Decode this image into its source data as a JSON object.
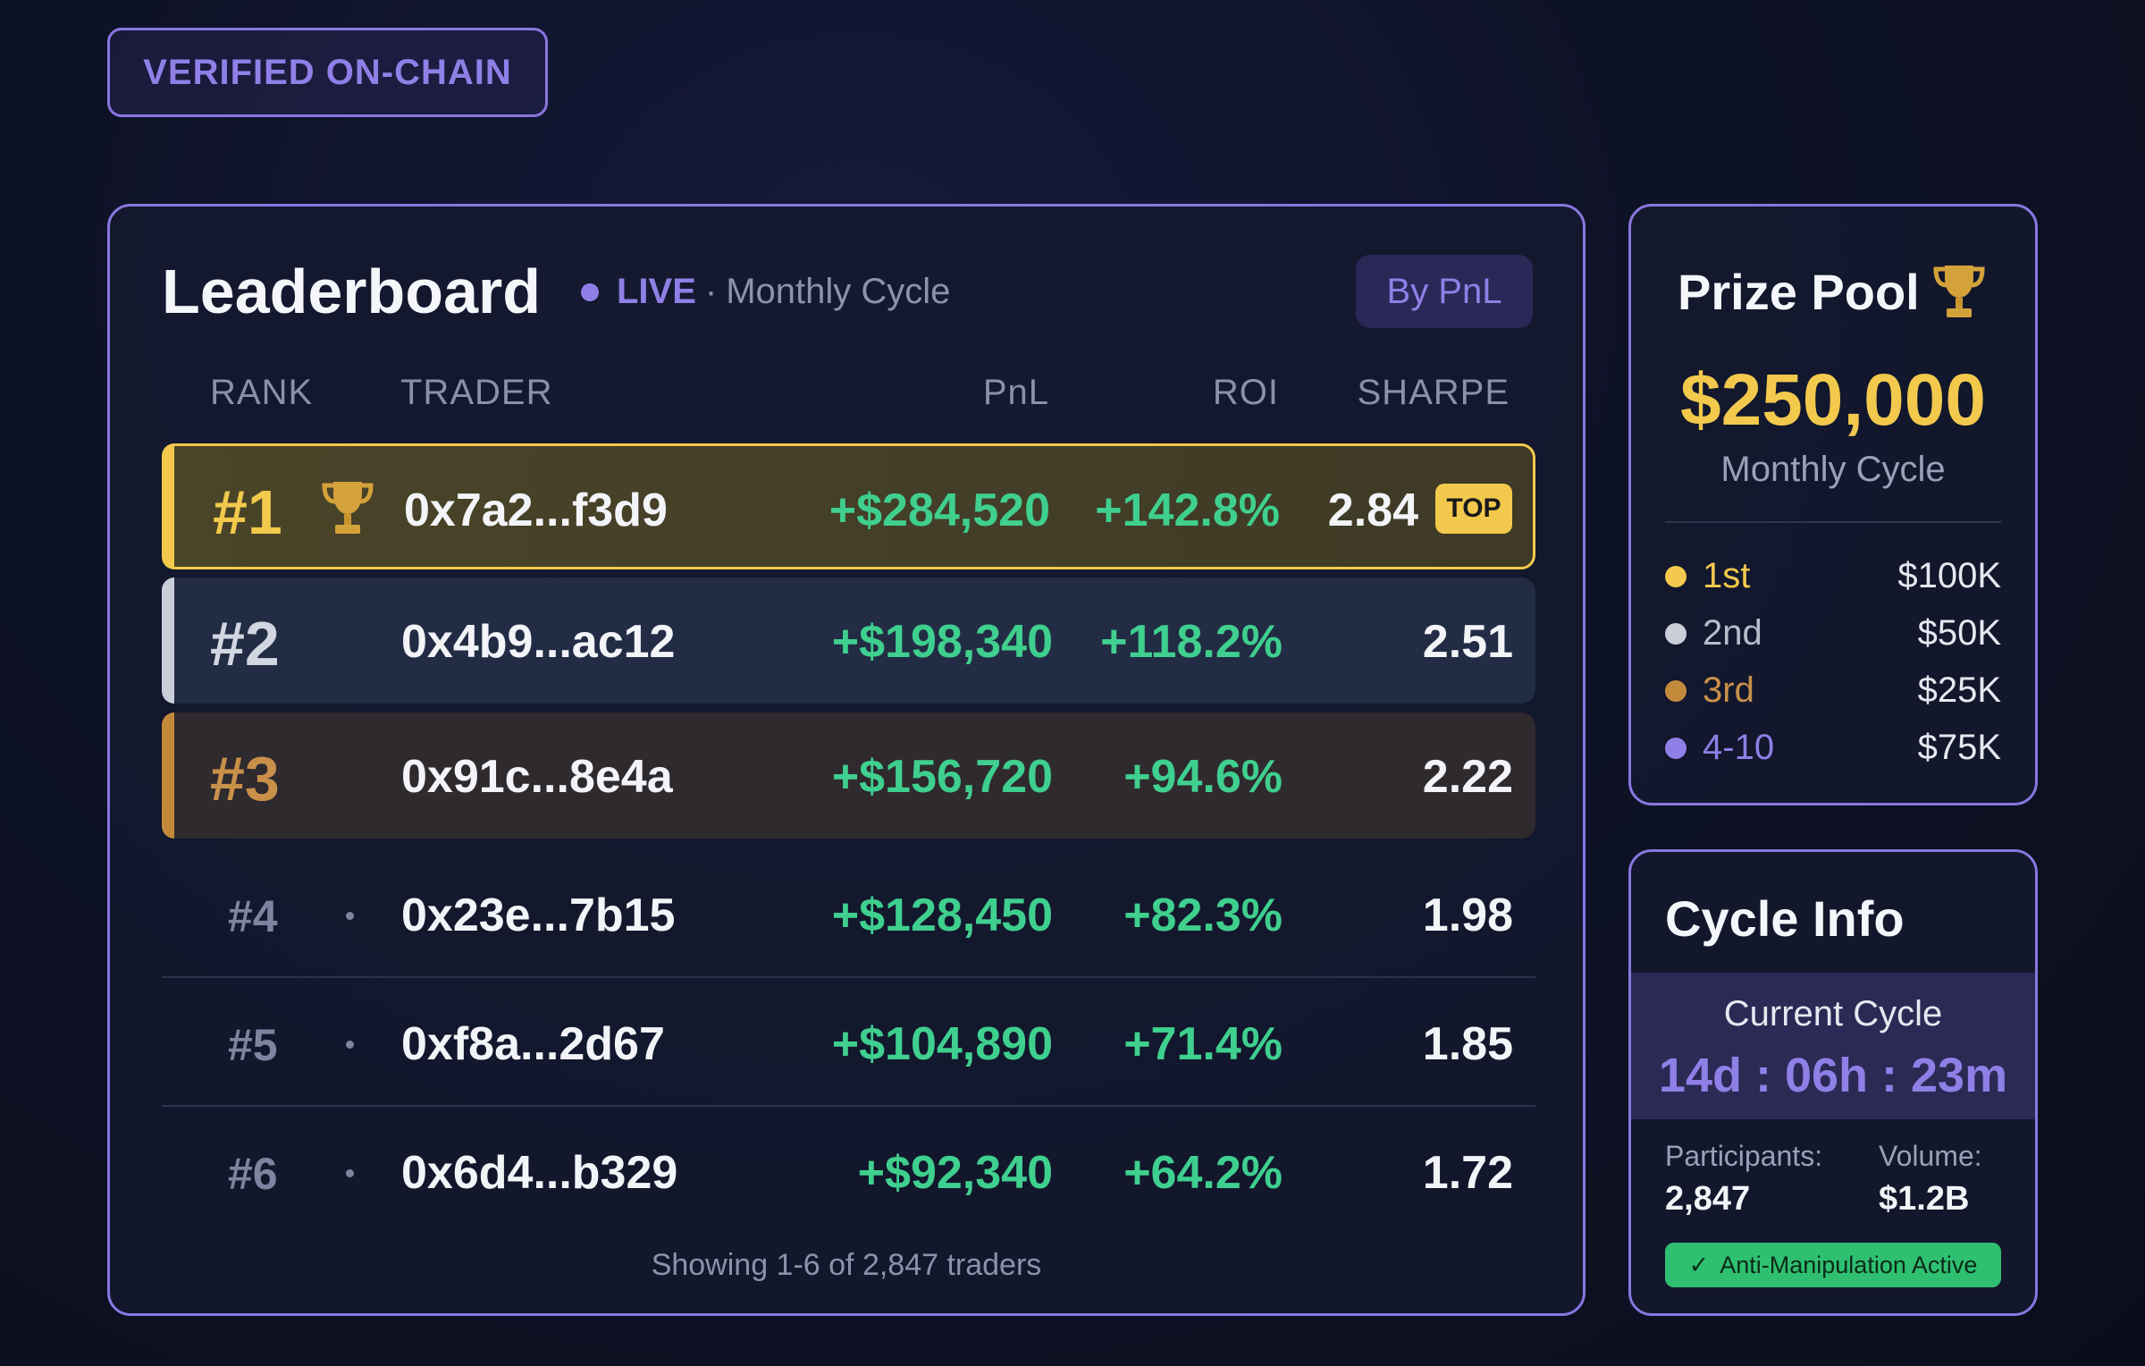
{
  "badge": "VERIFIED ON-CHAIN",
  "leaderboard": {
    "title": "Leaderboard",
    "live": "LIVE",
    "separator": "·",
    "cycle": "Monthly Cycle",
    "sort_label": "By PnL",
    "columns": {
      "rank": "RANK",
      "trader": "TRADER",
      "pnl": "PnL",
      "roi": "ROI",
      "sharpe": "SHARPE"
    },
    "rows": [
      {
        "rank": "#1",
        "trader": "0x7a2...f3d9",
        "pnl": "+$284,520",
        "roi": "+142.8%",
        "sharpe": "2.84",
        "badge": "TOP"
      },
      {
        "rank": "#2",
        "trader": "0x4b9...ac12",
        "pnl": "+$198,340",
        "roi": "+118.2%",
        "sharpe": "2.51"
      },
      {
        "rank": "#3",
        "trader": "0x91c...8e4a",
        "pnl": "+$156,720",
        "roi": "+94.6%",
        "sharpe": "2.22"
      },
      {
        "rank": "#4",
        "trader": "0x23e...7b15",
        "pnl": "+$128,450",
        "roi": "+82.3%",
        "sharpe": "1.98"
      },
      {
        "rank": "#5",
        "trader": "0xf8a...2d67",
        "pnl": "+$104,890",
        "roi": "+71.4%",
        "sharpe": "1.85"
      },
      {
        "rank": "#6",
        "trader": "0x6d4...b329",
        "pnl": "+$92,340",
        "roi": "+64.2%",
        "sharpe": "1.72"
      }
    ],
    "footer": "Showing 1-6 of 2,847 traders"
  },
  "prize_pool": {
    "title": "Prize Pool",
    "icon": "trophy-icon",
    "amount": "$250,000",
    "cycle": "Monthly Cycle",
    "tiers": [
      {
        "label": "1st",
        "value": "$100K",
        "color": "#f2c94c"
      },
      {
        "label": "2nd",
        "value": "$50K",
        "color": "#c9ced9"
      },
      {
        "label": "3rd",
        "value": "$25K",
        "color": "#c48a3c"
      },
      {
        "label": "4-10",
        "value": "$75K",
        "color": "#8f7fe6"
      }
    ]
  },
  "cycle_info": {
    "title": "Cycle Info",
    "current_label": "Current Cycle",
    "timer": "14d : 06h : 23m",
    "participants_label": "Participants:",
    "participants": "2,847",
    "volume_label": "Volume:",
    "volume": "$1.2B",
    "anti_manipulation": "Anti-Manipulation Active",
    "check_icon": "✓"
  },
  "colors": {
    "accent": "#8f7fe6",
    "gold": "#f2c94c",
    "silver": "#c9ced9",
    "bronze": "#c48a3c",
    "positive": "#3fcf8e"
  }
}
